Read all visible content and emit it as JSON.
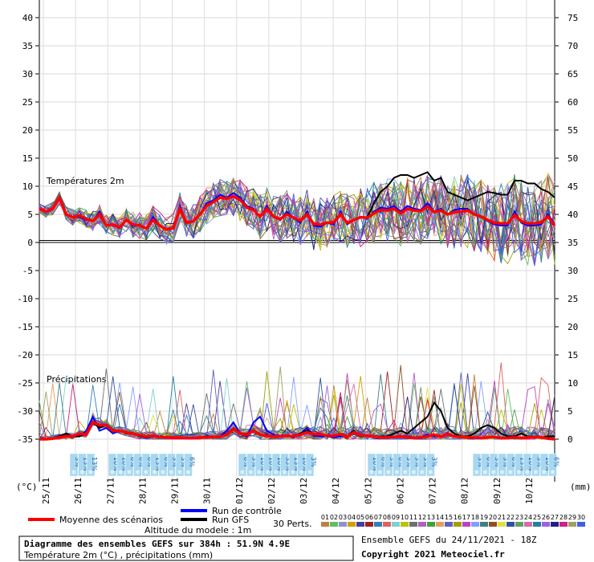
{
  "chart_data": {
    "type": "line",
    "temperature_label": "Températures 2m",
    "precip_label": "Précipitations",
    "left_unit": "(°C)",
    "right_unit": "(mm)",
    "left_ticks": [
      "40",
      "35",
      "30",
      "25",
      "20",
      "15",
      "10",
      "5",
      "0",
      "-5",
      "-10",
      "-15",
      "-20",
      "-25",
      "-30",
      "-35"
    ],
    "right_ticks": [
      "75",
      "70",
      "65",
      "60",
      "55",
      "50",
      "45",
      "40",
      "35",
      "30",
      "25",
      "20",
      "15",
      "10",
      "5",
      "0"
    ],
    "date_labels": [
      "25/11",
      "26/11",
      "27/11",
      "28/11",
      "29/11",
      "30/11",
      "01/12",
      "02/12",
      "03/12",
      "04/12",
      "05/12",
      "06/12",
      "07/12",
      "08/12",
      "09/12",
      "10/12"
    ],
    "ylim_temp": [
      -35,
      40
    ],
    "ylim_precip": [
      0,
      75
    ],
    "temp_mean": [
      6,
      5.5,
      6,
      8,
      5,
      4.5,
      4.8,
      4.2,
      3.8,
      5,
      3,
      3.2,
      2.7,
      4,
      3.2,
      3,
      2.5,
      4,
      3,
      2.3,
      2.5,
      6,
      3.5,
      3.8,
      5,
      6.5,
      7.2,
      8,
      7.8,
      8.2,
      7.6,
      6.2,
      5.8,
      4.6,
      6,
      4.6,
      4.2,
      5,
      4.4,
      3.9,
      5,
      3.3,
      3.2,
      3.5,
      3.6,
      5,
      3.5,
      4,
      4.5,
      4.4,
      5.2,
      5.8,
      5.7,
      6,
      5.2,
      6,
      5.7,
      5.6,
      6.4,
      5.4,
      5.7,
      5,
      5.4,
      5.5,
      5.7,
      5,
      4.6,
      4,
      3.5,
      3.4,
      3.4,
      4.9,
      3.8,
      3.4,
      3.4,
      3.6,
      4.6,
      3
    ],
    "temp_control": [
      6,
      5.5,
      6,
      8,
      5,
      4.5,
      4.5,
      4,
      3.8,
      5.5,
      3,
      3.2,
      2.5,
      4,
      3,
      3,
      2.5,
      4.5,
      3,
      2.2,
      2.5,
      6.5,
      3.5,
      3.8,
      5,
      7,
      7.5,
      8.5,
      8,
      8.8,
      8,
      6.5,
      6,
      4.5,
      6.5,
      4.5,
      4,
      5.5,
      4.3,
      3.5,
      5.5,
      3,
      2.8,
      3.5,
      3.2,
      5.5,
      3.2,
      4,
      4.5,
      4.2,
      5.5,
      6.2,
      6,
      6.5,
      5.5,
      6.5,
      6,
      5.8,
      7,
      5.5,
      6,
      5,
      5.8,
      6,
      6,
      5,
      4.5,
      3.8,
      3.2,
      3,
      3,
      5.5,
      3.5,
      3,
      3,
      3.2,
      5,
      3.3
    ],
    "temp_gfs": [
      6,
      5.5,
      6,
      8,
      5,
      4.5,
      4.8,
      4.2,
      3.8,
      5,
      3,
      3.2,
      2.7,
      4,
      3.2,
      3,
      2.5,
      4,
      3,
      2.3,
      2.5,
      6,
      3.5,
      3.8,
      5,
      6.5,
      7.2,
      8,
      7.8,
      8.2,
      7.6,
      6.2,
      5.8,
      4.6,
      6,
      4.6,
      4.2,
      5,
      4.4,
      3.9,
      5,
      3.3,
      3.2,
      3.5,
      3.6,
      5,
      3.5,
      4,
      4.5,
      4.4,
      7,
      9,
      10,
      11.5,
      12,
      12,
      11.5,
      12,
      12.5,
      11,
      11.5,
      9,
      8.5,
      8,
      7.5,
      8,
      8.5,
      9,
      8.8,
      8.5,
      8.5,
      11,
      11,
      10.5,
      10.5,
      9.5,
      9,
      8
    ],
    "precip_mean": [
      0,
      0,
      0.1,
      0.3,
      0.5,
      0.5,
      1,
      0.8,
      3,
      2.5,
      2.5,
      1.5,
      1.5,
      1.2,
      1,
      0.7,
      0.5,
      0.6,
      0.4,
      0.3,
      0.3,
      0.3,
      0.2,
      0.2,
      0.3,
      0.3,
      0.4,
      0.4,
      0.8,
      1.8,
      1,
      0.8,
      1.5,
      0.8,
      0.6,
      0.5,
      0.5,
      0.6,
      0.5,
      0.8,
      1.2,
      0.9,
      0.9,
      0.6,
      0.6,
      0.9,
      0.4,
      1.2,
      0.7,
      0.6,
      0.5,
      0.3,
      0.3,
      0.4,
      0.5,
      0.3,
      0.2,
      0.3,
      0.5,
      0.8,
      0.4,
      1,
      0.5,
      0.4,
      0.3,
      0.3,
      0.2,
      0.3,
      0.4,
      0.2,
      0.2,
      0.3,
      0.2,
      0.3,
      0.4,
      0.3,
      0.1,
      0
    ],
    "precip_control": [
      0,
      0,
      0.2,
      0.5,
      1,
      0.4,
      0.5,
      1.5,
      4,
      1.5,
      2,
      1,
      1.5,
      1.2,
      1,
      0.5,
      0.3,
      0.5,
      0.3,
      0.3,
      0.2,
      0.3,
      0.2,
      0.2,
      0.3,
      0.5,
      0.5,
      0.5,
      1.5,
      3,
      1,
      0.5,
      3,
      4,
      1.5,
      0.8,
      0.6,
      0.5,
      0.3,
      1,
      2,
      0.6,
      0.5,
      0.5,
      0.3,
      0.5,
      0.5,
      1,
      0.5,
      0.5,
      0.6,
      0.3,
      0.3,
      0.5,
      0.5,
      0.5,
      0.3,
      0.4,
      0.8,
      0.5,
      0.5,
      0.8,
      0.5,
      0.5,
      0.3,
      0.3,
      0.2,
      0.3,
      0.4,
      0.2,
      0.2,
      0.3,
      0.2,
      0.3,
      0.4,
      0.3,
      0.1,
      0
    ],
    "precip_gfs": [
      0,
      0,
      0.2,
      0.5,
      1,
      0.5,
      0.5,
      1,
      3,
      2,
      2.5,
      1.5,
      1.5,
      1,
      1,
      0.5,
      0.3,
      0.5,
      0.3,
      0.3,
      0.2,
      0.2,
      0.2,
      0.2,
      0.3,
      0.5,
      0.5,
      0.5,
      1,
      2,
      1,
      1,
      1.5,
      0.8,
      0.8,
      0.5,
      0.5,
      0.5,
      0.5,
      1,
      1.5,
      1,
      0.8,
      0.5,
      0.5,
      1,
      0.5,
      1.5,
      0.5,
      0.5,
      0.5,
      0.5,
      0.5,
      1,
      1.5,
      1,
      2,
      3,
      4,
      6.5,
      5,
      2,
      1,
      0.5,
      0.5,
      1,
      2,
      2.5,
      2,
      1,
      0.5,
      0.5,
      1,
      0.5,
      0.5,
      0.3,
      0.5,
      0.5
    ],
    "perturbation_count": 30,
    "snow_labels": [
      "3%",
      "13%",
      "13%",
      "10%",
      "10%",
      "6%",
      "6%",
      "6%",
      "13%",
      "6%",
      "3%",
      "3%",
      "6%",
      "6%",
      "3%",
      "10%",
      "10%",
      "10%",
      "35%",
      "13%",
      "10%",
      "3%",
      "10%",
      "6%",
      "3%",
      "6%",
      "3%",
      "3%",
      "3%",
      "3%",
      "3%",
      "6%",
      "3%",
      "3%",
      "6%",
      "13%",
      "10%",
      "3%",
      "10%",
      "6%"
    ]
  },
  "legend": {
    "mean_label": "Moyenne des scénarios",
    "control_label": "Run de contrôle",
    "gfs_label": "Run GFS",
    "altitude_label": "Altitude du modele : 1m",
    "perts_label": "30 Perts.",
    "pert_numbers": [
      "01",
      "02",
      "03",
      "04",
      "05",
      "06",
      "07",
      "08",
      "09",
      "10",
      "11",
      "12",
      "13",
      "14",
      "15",
      "16",
      "17",
      "18",
      "19",
      "20",
      "21",
      "22",
      "23",
      "24",
      "25",
      "26",
      "27",
      "28",
      "29",
      "30"
    ],
    "pert_colors": [
      "#c08040",
      "#60c060",
      "#9090d0",
      "#d0a000",
      "#4040a0",
      "#a02020",
      "#3080c0",
      "#e06060",
      "#80d0d0",
      "#c0c000",
      "#707070",
      "#b060c0",
      "#40a040",
      "#e0a060",
      "#6060c0",
      "#a0a000",
      "#c040c0",
      "#80a0ff",
      "#408080",
      "#905020",
      "#e0e040",
      "#3050a0",
      "#60a060",
      "#d070a0",
      "#2080a0",
      "#a060e0",
      "#202080",
      "#d02080",
      "#a0a060",
      "#4060e0"
    ]
  },
  "colors": {
    "mean": "#ff0000",
    "control": "#0000ff",
    "gfs": "#000000"
  },
  "footer": {
    "title": "Diagramme des ensembles GEFS sur 384h : 51.9N 4.9E",
    "subtitle": "Température 2m (°C) , précipitations (mm)",
    "run_label": "Ensemble GEFS du 24/11/2021 - 18Z",
    "copyright": "Copyright 2021 Meteociel.fr"
  }
}
